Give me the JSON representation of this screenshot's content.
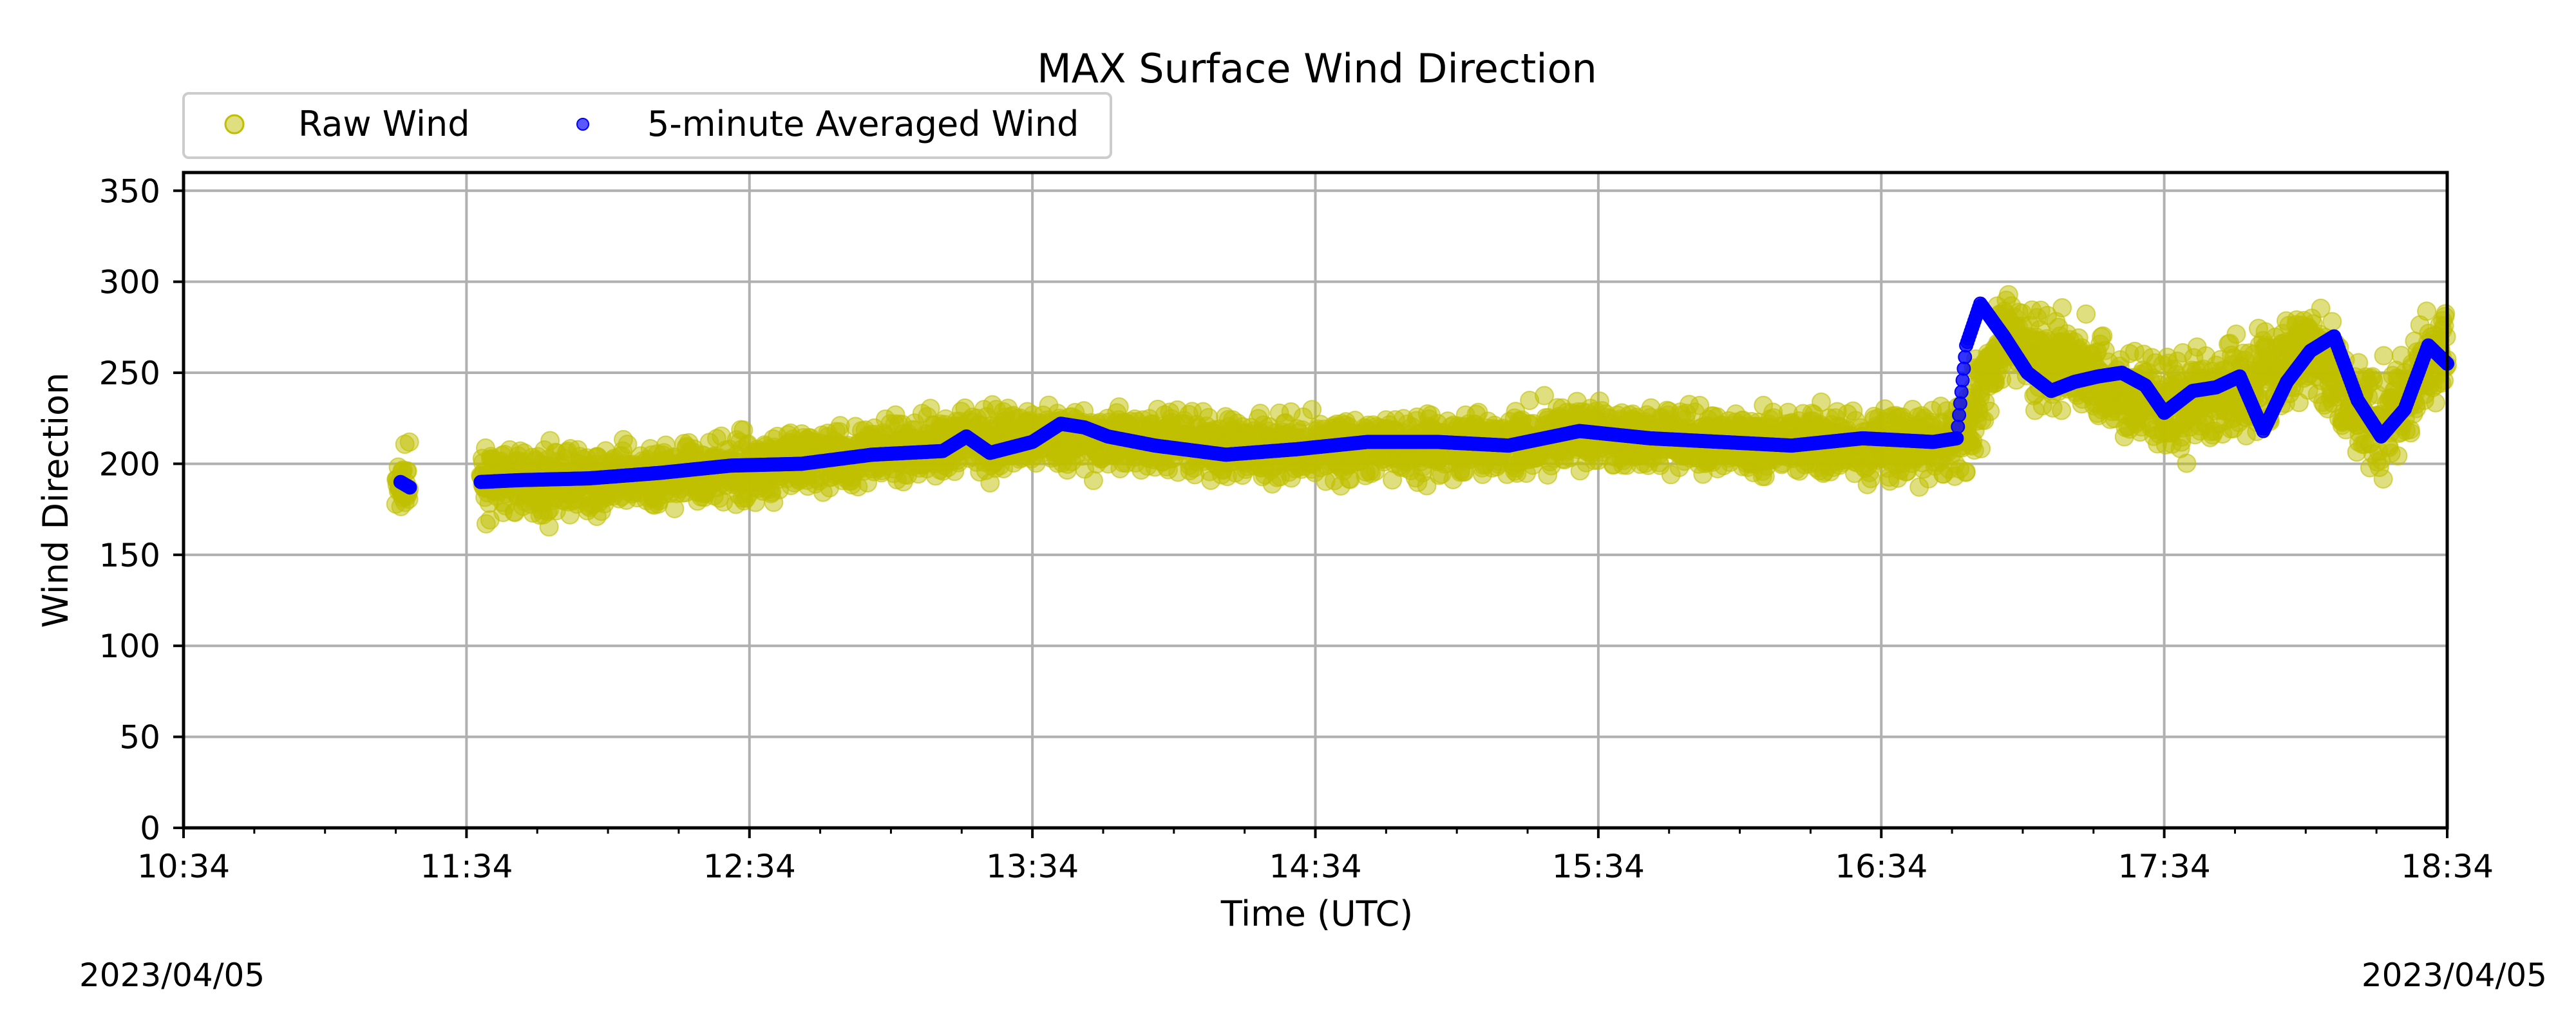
{
  "chart_data": {
    "type": "scatter",
    "title": "MAX Surface Wind Direction",
    "xlabel": "Time (UTC)",
    "ylabel": "Wind Direction",
    "ylim": [
      0,
      360
    ],
    "xlim": [
      "10:34",
      "18:34"
    ],
    "xticks": [
      "10:34",
      "11:34",
      "12:34",
      "13:34",
      "14:34",
      "15:34",
      "16:34",
      "17:34",
      "18:34"
    ],
    "yticks": [
      0,
      50,
      100,
      150,
      200,
      250,
      300,
      350
    ],
    "grid": true,
    "legend_position": "top-left",
    "date_left": "2023/04/05",
    "date_right": "2023/04/05",
    "series": [
      {
        "name": "Raw Wind",
        "marker": "circle",
        "color": "#bfbf00",
        "spread": 15,
        "segments": [
          {
            "x": [
              "11:19",
              "11:22"
            ],
            "y": [
              186,
              190
            ]
          },
          {
            "x": [
              "11:37",
              "12:00",
              "12:30",
              "13:00",
              "13:30",
              "14:00",
              "14:30",
              "15:00",
              "15:30",
              "16:00",
              "16:30",
              "16:51",
              "17:00",
              "17:20",
              "17:34",
              "17:50",
              "18:05",
              "18:20",
              "18:34"
            ],
            "y": [
              190,
              190,
              197,
              205,
              215,
              212,
              208,
              210,
              216,
              212,
              210,
              212,
              272,
              245,
              232,
              240,
              262,
              222,
              268
            ]
          }
        ]
      },
      {
        "name": "5-minute Averaged Wind",
        "marker": "circle",
        "color": "#0000ff",
        "segments": [
          {
            "x": [
              "11:20",
              "11:22"
            ],
            "y": [
              190,
              187
            ]
          },
          {
            "x": [
              "11:37",
              "11:45",
              "12:00",
              "12:15",
              "12:30",
              "12:45",
              "13:00",
              "13:15",
              "13:20",
              "13:25",
              "13:34",
              "13:40",
              "13:45",
              "13:50",
              "14:00",
              "14:15",
              "14:30",
              "14:45",
              "15:00",
              "15:15",
              "15:30",
              "15:45",
              "16:00",
              "16:15",
              "16:30",
              "16:45",
              "16:50",
              "16:52",
              "16:55",
              "17:00",
              "17:05",
              "17:10",
              "17:15",
              "17:20",
              "17:25",
              "17:30",
              "17:34",
              "17:40",
              "17:45",
              "17:50",
              "17:55",
              "18:00",
              "18:05",
              "18:10",
              "18:15",
              "18:20",
              "18:25",
              "18:30",
              "18:34"
            ],
            "y": [
              190,
              191,
              192,
              195,
              199,
              200,
              205,
              207,
              215,
              206,
              212,
              222,
              220,
              215,
              210,
              205,
              208,
              212,
              212,
              210,
              218,
              214,
              212,
              210,
              214,
              212,
              214,
              265,
              288,
              270,
              250,
              240,
              245,
              248,
              250,
              243,
              228,
              240,
              242,
              248,
              218,
              245,
              262,
              270,
              235,
              215,
              230,
              265,
              255
            ]
          }
        ]
      }
    ]
  }
}
